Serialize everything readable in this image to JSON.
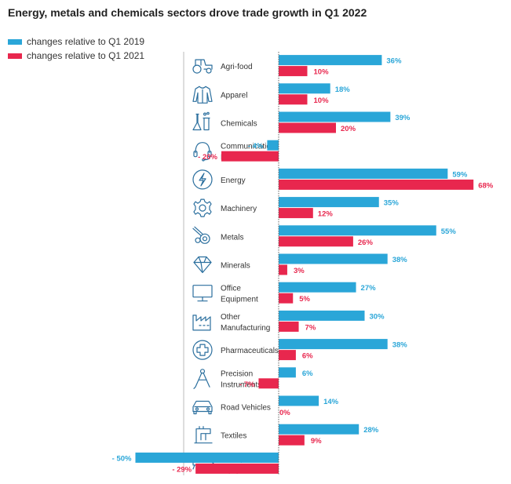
{
  "title": "Energy, metals and chemicals sectors drove trade growth in Q1 2022",
  "colors": {
    "series_2019": "#2aa6d8",
    "series_2021": "#e8274e",
    "icon": "#2b6f9e",
    "axis": "#666666"
  },
  "chart_data": {
    "type": "bar",
    "orientation": "horizontal",
    "title": "Energy, metals and chemicals sectors drove trade growth in Q1 2022",
    "legend": "top-left",
    "categories": [
      {
        "label": "Agri-food",
        "icon": "tractor-icon"
      },
      {
        "label": "Apparel",
        "icon": "jacket-icon"
      },
      {
        "label": "Chemicals",
        "icon": "flask-icon"
      },
      {
        "label": "Communication Equipment",
        "icon": "headset-icon"
      },
      {
        "label": "Energy",
        "icon": "lightning-icon"
      },
      {
        "label": "Machinery",
        "icon": "gear-icon"
      },
      {
        "label": "Metals",
        "icon": "metal-coil-icon"
      },
      {
        "label": "Minerals",
        "icon": "gem-icon"
      },
      {
        "label": "Office Equipment",
        "icon": "monitor-icon"
      },
      {
        "label": "Other Manufacturing",
        "icon": "factory-icon"
      },
      {
        "label": "Pharmaceuticals",
        "icon": "medical-cross-icon"
      },
      {
        "label": "Precision Instruments",
        "icon": "compass-icon"
      },
      {
        "label": "Road Vehicles",
        "icon": "car-icon"
      },
      {
        "label": "Textiles",
        "icon": "sewing-machine-icon"
      },
      {
        "label": "Transport Equipment",
        "icon": "airplane-icon"
      }
    ],
    "series": [
      {
        "name": "changes relative to Q1 2019",
        "color": "#2aa6d8",
        "values": [
          36,
          18,
          39,
          -4,
          59,
          35,
          55,
          38,
          27,
          30,
          38,
          6,
          14,
          28,
          -50
        ],
        "labels": [
          "36%",
          "18%",
          "39%",
          "- 4%",
          "59%",
          "35%",
          "55%",
          "38%",
          "27%",
          "30%",
          "38%",
          "6%",
          "14%",
          "28%",
          "- 50%"
        ]
      },
      {
        "name": "changes relative to Q1 2021",
        "color": "#e8274e",
        "values": [
          10,
          10,
          20,
          -20,
          68,
          12,
          26,
          3,
          5,
          7,
          6,
          -7,
          0,
          9,
          -29
        ],
        "labels": [
          "10%",
          "10%",
          "20%",
          "- 20%",
          "68%",
          "12%",
          "26%",
          "3%",
          "5%",
          "7%",
          "6%",
          "- 7%",
          "0%",
          "9%",
          "- 29%"
        ]
      }
    ],
    "xlim": [
      -50,
      68
    ]
  }
}
